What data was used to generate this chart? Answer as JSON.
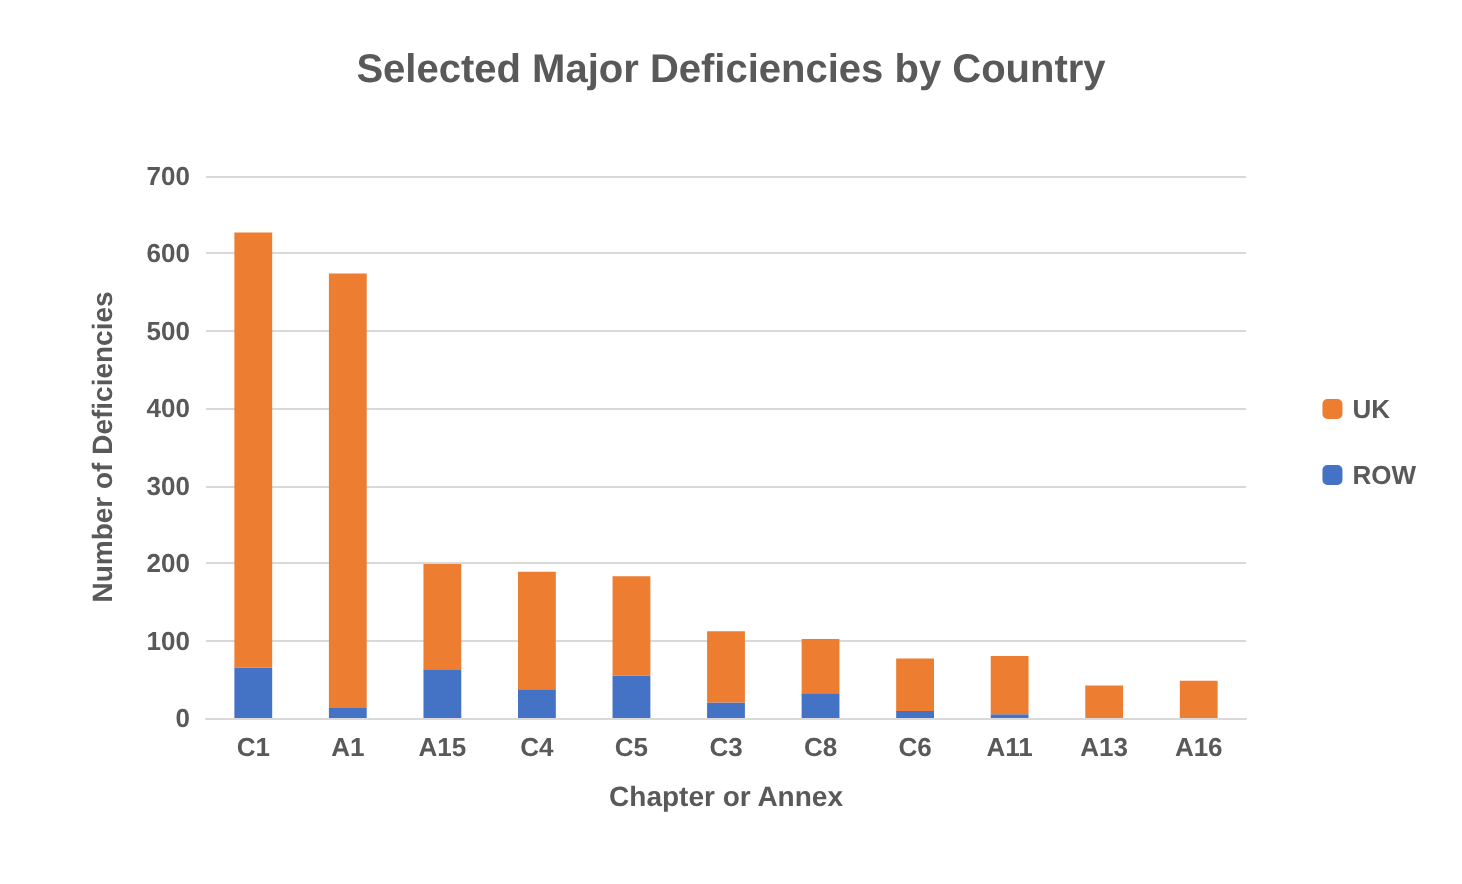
{
  "chart_data": {
    "type": "bar",
    "stacked": true,
    "title": "Selected Major Deficiencies by Country",
    "xlabel": "Chapter or Annex",
    "ylabel": "Number of Deficiencies",
    "categories": [
      "C1",
      "A1",
      "A15",
      "C4",
      "C5",
      "C3",
      "C8",
      "C6",
      "A11",
      "A13",
      "A16"
    ],
    "series": [
      {
        "name": "ROW",
        "color": "#4472c4",
        "values": [
          65,
          13,
          62,
          37,
          55,
          20,
          32,
          9,
          5,
          0,
          0
        ]
      },
      {
        "name": "UK",
        "color": "#ed7d31",
        "values": [
          562,
          561,
          137,
          152,
          128,
          92,
          70,
          68,
          75,
          42,
          48
        ]
      }
    ],
    "ylim": [
      0,
      700
    ],
    "yticks": [
      0,
      100,
      200,
      300,
      400,
      500,
      600,
      700
    ],
    "grid": "y",
    "legend": "right"
  }
}
